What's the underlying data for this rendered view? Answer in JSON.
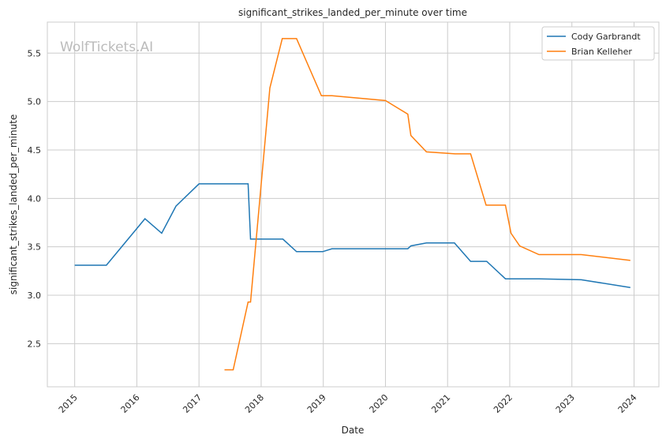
{
  "chart_data": {
    "type": "line",
    "title": "significant_strikes_landed_per_minute over time",
    "xlabel": "Date",
    "ylabel": "significant_strikes_landed_per_minute",
    "watermark": "WolfTickets.AI",
    "xlim": [
      2014.56,
      2024.4
    ],
    "ylim": [
      2.055,
      5.82
    ],
    "x_ticks": [
      "2015",
      "2016",
      "2017",
      "2018",
      "2019",
      "2020",
      "2021",
      "2022",
      "2023",
      "2024"
    ],
    "y_ticks": [
      "2.5",
      "3.0",
      "3.5",
      "4.0",
      "4.5",
      "5.0",
      "5.5"
    ],
    "grid": true,
    "legend_position": "top-right",
    "series": [
      {
        "name": "Cody Garbrandt",
        "color": "#1f77b4",
        "x": [
          2015.0,
          2015.51,
          2016.13,
          2016.4,
          2016.63,
          2017.0,
          2017.79,
          2017.83,
          2018.35,
          2018.57,
          2018.99,
          2019.14,
          2020.36,
          2020.41,
          2020.66,
          2021.11,
          2021.37,
          2021.63,
          2021.93,
          2022.47,
          2023.15,
          2023.94
        ],
        "y": [
          3.31,
          3.31,
          3.79,
          3.64,
          3.92,
          4.15,
          4.15,
          3.58,
          3.58,
          3.45,
          3.45,
          3.48,
          3.48,
          3.51,
          3.54,
          3.54,
          3.35,
          3.35,
          3.17,
          3.17,
          3.16,
          3.08
        ]
      },
      {
        "name": "Brian Kelleher",
        "color": "#ff7f0e",
        "x": [
          2017.41,
          2017.55,
          2017.79,
          2017.83,
          2018.14,
          2018.34,
          2018.57,
          2018.97,
          2019.14,
          2020.0,
          2020.36,
          2020.41,
          2020.66,
          2021.12,
          2021.37,
          2021.62,
          2021.93,
          2022.02,
          2022.16,
          2022.47,
          2023.15,
          2023.94
        ],
        "y": [
          2.23,
          2.23,
          2.93,
          2.93,
          5.14,
          5.65,
          5.65,
          5.06,
          5.06,
          5.01,
          4.87,
          4.65,
          4.48,
          4.46,
          4.46,
          3.93,
          3.93,
          3.64,
          3.51,
          3.42,
          3.42,
          3.36
        ]
      }
    ]
  }
}
